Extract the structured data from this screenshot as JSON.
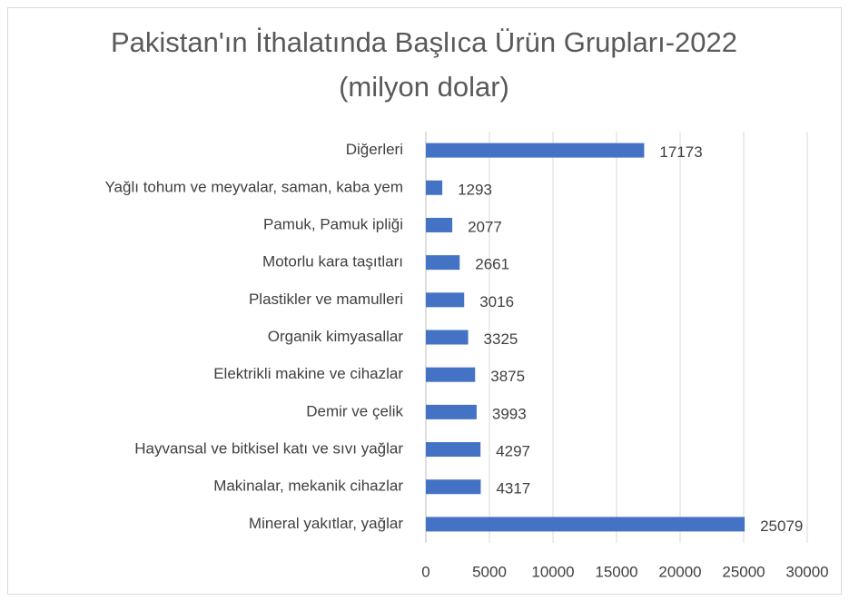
{
  "chart_data": {
    "type": "barh",
    "title": "Pakistan'ın İthalatında Başlıca Ürün Grupları-2022 (milyon dolar)",
    "categories": [
      "Diğerleri",
      "Yağlı tohum ve meyvalar, saman, kaba yem",
      "Pamuk, Pamuk ipliği",
      "Motorlu kara taşıtları",
      "Plastikler ve mamulleri",
      "Organik kimyasallar",
      "Elektrikli makine ve cihazlar",
      "Demir ve çelik",
      "Hayvansal ve bitkisel katı ve sıvı yağlar",
      "Makinalar, mekanik cihazlar",
      "Mineral yakıtlar, yağlar"
    ],
    "values": [
      17173,
      1293,
      2077,
      2661,
      3016,
      3325,
      3875,
      3993,
      4297,
      4317,
      25079
    ],
    "color": "#4472c4",
    "xlim": [
      0,
      30000
    ],
    "xticks": [
      0,
      5000,
      10000,
      15000,
      20000,
      25000,
      30000
    ],
    "grid": true
  }
}
